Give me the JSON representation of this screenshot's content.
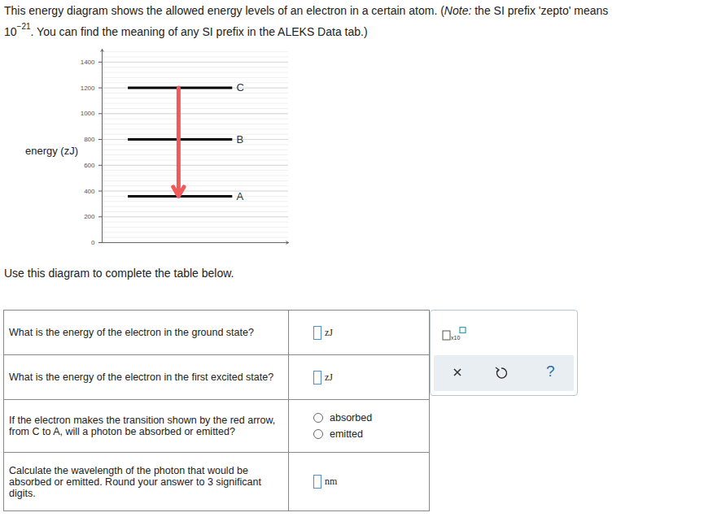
{
  "prompt": {
    "before": "This energy diagram shows the allowed energy levels of an electron in a certain atom. (",
    "note_label": "Note:",
    "note_text": " the SI prefix 'zepto' means ",
    "base": "10",
    "exponent": "−21",
    "after": ". You can find the meaning of any SI prefix in the ALEKS Data tab.)"
  },
  "chart_data": {
    "type": "energy_levels",
    "ylabel": "energy (zJ)",
    "ylim": [
      0,
      1500
    ],
    "yticks": [
      0,
      200,
      400,
      600,
      800,
      1000,
      1200,
      1400
    ],
    "grid": true,
    "tick_labels": "y",
    "levels": [
      {
        "name": "A",
        "value": 360
      },
      {
        "name": "B",
        "value": 800
      },
      {
        "name": "C",
        "value": 1200
      }
    ],
    "transition": {
      "from": "C",
      "to": "A",
      "color": "#f05a5a"
    }
  },
  "instruction": "Use this diagram to complete the table below.",
  "table": {
    "rows": [
      {
        "question": "What is the energy of the electron in the ground state?",
        "unit": "zJ"
      },
      {
        "question": "What is the energy of the electron in the first excited state?",
        "unit": "zJ"
      },
      {
        "question": "If the electron makes the transition shown by the red arrow, from C to A, will a photon be absorbed or emitted?",
        "options": [
          "absorbed",
          "emitted"
        ]
      },
      {
        "question": "Calculate the wavelength of the photon that would be absorbed or emitted. Round your answer to 3 significant digits.",
        "unit": "nm"
      }
    ]
  },
  "toolbar": {
    "exponent_button": "x10",
    "help": "?"
  }
}
